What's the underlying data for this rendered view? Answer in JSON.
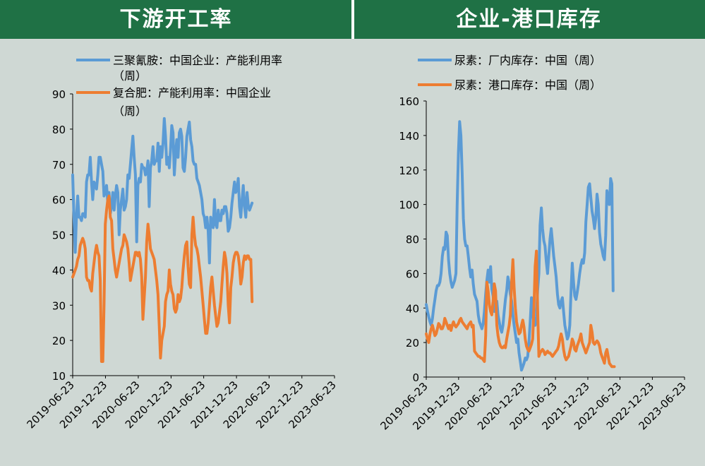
{
  "titles": {
    "left": "下游开工率",
    "right": "企业-港口库存"
  },
  "colors": {
    "header": "#1f7145",
    "background": "#cfd8d4",
    "blue": "#5b9bd5",
    "orange": "#ed7d31"
  },
  "chart_data": [
    {
      "type": "line",
      "title": "下游开工率",
      "xlabel": "",
      "ylabel": "",
      "ylim": [
        10,
        90
      ],
      "yticks": [
        "10",
        "20",
        "30",
        "40",
        "50",
        "60",
        "70",
        "80",
        "90"
      ],
      "xticks": [
        "2019-06-23",
        "2019-12-23",
        "2020-06-23",
        "2020-12-23",
        "2021-06-23",
        "2021-12-23",
        "2022-06-23",
        "2022-12-23",
        "2023-06-23"
      ],
      "legend": [
        "三聚氰胺：中国企业：产能利用率",
        "（周）",
        "复合肥：产能利用率：中国企业",
        "（周）"
      ],
      "series": [
        {
          "name": "三聚氰胺：中国企业：产能利用率（周）",
          "color": "#5b9bd5",
          "x_start": "2019-06-23",
          "step_weeks": 1,
          "values": [
            67,
            55,
            45,
            55,
            61,
            55,
            55,
            54,
            56,
            56,
            55,
            65,
            67,
            67,
            72,
            65,
            60,
            65,
            64,
            63,
            67,
            72,
            72,
            70,
            68,
            61,
            62,
            64,
            59,
            62,
            56,
            58,
            62,
            57,
            61,
            64,
            62,
            50,
            57,
            60,
            63,
            57,
            58,
            60,
            67,
            66,
            70,
            74,
            78,
            72,
            67,
            48,
            64,
            66,
            65,
            70,
            69,
            69,
            67,
            68,
            71,
            58,
            69,
            71,
            75,
            70,
            71,
            71,
            76,
            68,
            75,
            72,
            76,
            83,
            78,
            70,
            72,
            69,
            74,
            81,
            79,
            67,
            73,
            77,
            72,
            79,
            80,
            78,
            69,
            68,
            72,
            78,
            80,
            82,
            77,
            75,
            71,
            70,
            70,
            66,
            65,
            64,
            62,
            60,
            56,
            55,
            52,
            55,
            51,
            42,
            55,
            53,
            52,
            60,
            53,
            52,
            57,
            54,
            54,
            57,
            56,
            58,
            58,
            56,
            51,
            52,
            55,
            59,
            62,
            65,
            62,
            63,
            66,
            58,
            55,
            60,
            64,
            58,
            55,
            62,
            58,
            57,
            58,
            59
          ]
        },
        {
          "name": "复合肥：产能利用率：中国企业（周）",
          "color": "#ed7d31",
          "x_start": "2019-06-23",
          "step_weeks": 1,
          "values": [
            38,
            39,
            40,
            41,
            43,
            44,
            47,
            48,
            49,
            48,
            46,
            38,
            37,
            37,
            35,
            34,
            39,
            42,
            45,
            47,
            45,
            44,
            37,
            14,
            14,
            30,
            53,
            57,
            60,
            61,
            55,
            54,
            46,
            43,
            40,
            38,
            40,
            42,
            44,
            46,
            47,
            50,
            49,
            48,
            46,
            42,
            37,
            39,
            41,
            43,
            45,
            45,
            44,
            45,
            43,
            38,
            26,
            32,
            38,
            48,
            53,
            50,
            46,
            45,
            44,
            43,
            40,
            37,
            33,
            24,
            15,
            20,
            22,
            24,
            31,
            33,
            34,
            40,
            36,
            34,
            33,
            29,
            28,
            29,
            33,
            31,
            32,
            35,
            40,
            44,
            47,
            48,
            41,
            36,
            35,
            50,
            55,
            50,
            47,
            46,
            44,
            41,
            38,
            34,
            30,
            26,
            22,
            22,
            25,
            30,
            35,
            38,
            34,
            30,
            27,
            24,
            25,
            28,
            31,
            36,
            41,
            45,
            43,
            39,
            30,
            25,
            35,
            38,
            42,
            44,
            45,
            45,
            44,
            41,
            36,
            38,
            42,
            44,
            43,
            44,
            44,
            43,
            43,
            31
          ]
        }
      ]
    },
    {
      "type": "line",
      "title": "企业-港口库存",
      "xlabel": "",
      "ylabel": "",
      "ylim": [
        0,
        160
      ],
      "yticks": [
        "0",
        "20",
        "40",
        "60",
        "80",
        "100",
        "120",
        "140",
        "160"
      ],
      "xticks": [
        "2019-06-23",
        "2019-12-23",
        "2020-06-23",
        "2020-12-23",
        "2021-06-23",
        "2021-12-23",
        "2022-06-23",
        "2022-12-23",
        "2023-06-23"
      ],
      "legend": [
        "尿素：厂内库存：中国（周）",
        "尿素：港口库存：中国（周）"
      ],
      "series": [
        {
          "name": "尿素：厂内库存：中国（周）",
          "color": "#5b9bd5",
          "x_start": "2019-06-23",
          "step_weeks": 1,
          "values": [
            42,
            38,
            35,
            32,
            30,
            34,
            40,
            45,
            50,
            53,
            53,
            55,
            60,
            70,
            75,
            74,
            84,
            82,
            68,
            60,
            55,
            52,
            54,
            56,
            60,
            100,
            130,
            148,
            140,
            118,
            92,
            80,
            76,
            76,
            70,
            63,
            58,
            62,
            54,
            48,
            46,
            44,
            36,
            32,
            30,
            28,
            31,
            38,
            48,
            56,
            62,
            55,
            64,
            51,
            47,
            38,
            42,
            44,
            36,
            32,
            28,
            26,
            30,
            38,
            45,
            50,
            58,
            54,
            48,
            44,
            36,
            30,
            25,
            20,
            22,
            14,
            9,
            4,
            6,
            8,
            11,
            10,
            12,
            20,
            32,
            46,
            38,
            30,
            30,
            35,
            50,
            60,
            88,
            98,
            86,
            79,
            76,
            67,
            60,
            70,
            80,
            86,
            78,
            70,
            64,
            58,
            48,
            42,
            40,
            44,
            46,
            38,
            30,
            26,
            22,
            24,
            30,
            50,
            66,
            55,
            47,
            45,
            49,
            54,
            60,
            65,
            68,
            66,
            72,
            90,
            100,
            110,
            112,
            104,
            96,
            92,
            86,
            92,
            106,
            100,
            84,
            77,
            74,
            70,
            68,
            82,
            108,
            104,
            100,
            115,
            112,
            50
          ]
        },
        {
          "name": "尿素：港口库存：中国（周）",
          "color": "#ed7d31",
          "x_start": "2019-06-23",
          "step_weeks": 1,
          "values": [
            25,
            22,
            20,
            25,
            28,
            30,
            27,
            24,
            25,
            28,
            31,
            30,
            28,
            28,
            30,
            34,
            32,
            30,
            28,
            30,
            27,
            30,
            32,
            30,
            29,
            30,
            31,
            33,
            34,
            32,
            31,
            30,
            29,
            28,
            30,
            31,
            32,
            29,
            30,
            15,
            14,
            13,
            12,
            12,
            11,
            11,
            10,
            9,
            24,
            55,
            50,
            42,
            38,
            36,
            44,
            54,
            50,
            30,
            24,
            20,
            18,
            17,
            17,
            18,
            17,
            22,
            26,
            30,
            36,
            55,
            68,
            52,
            40,
            32,
            28,
            25,
            26,
            30,
            33,
            29,
            22,
            18,
            16,
            15,
            17,
            19,
            22,
            40,
            64,
            73,
            40,
            12,
            14,
            15,
            16,
            15,
            13,
            14,
            15,
            14,
            14,
            13,
            12,
            13,
            14,
            15,
            16,
            18,
            22,
            25,
            22,
            16,
            12,
            10,
            11,
            12,
            15,
            18,
            22,
            20,
            16,
            15,
            18,
            20,
            22,
            25,
            20,
            18,
            16,
            14,
            16,
            18,
            20,
            30,
            26,
            20,
            19,
            20,
            21,
            20,
            18,
            14,
            12,
            10,
            8,
            14,
            16,
            12,
            8,
            7,
            6,
            6,
            6
          ]
        }
      ]
    }
  ]
}
